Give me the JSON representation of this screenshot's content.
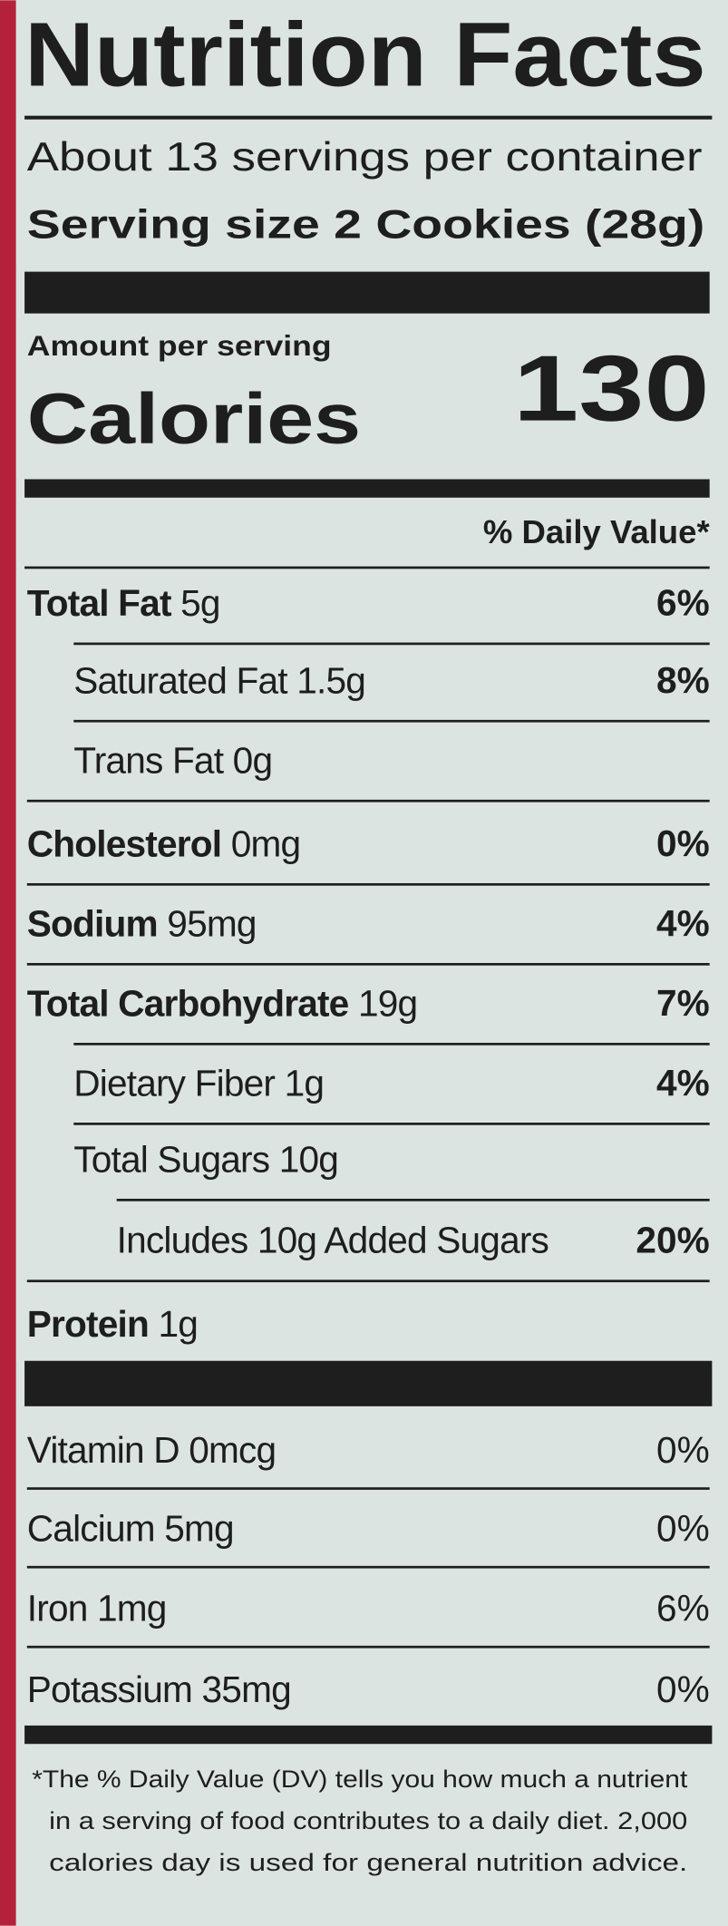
{
  "header": {
    "title": "Nutrition Facts",
    "servings": "About 13 servings per container",
    "serving_size": "Serving size 2 Cookies (28g)"
  },
  "calories": {
    "label": "Amount per serving",
    "name": "Calories",
    "value": "130"
  },
  "daily_value_header": "% Daily Value*",
  "nutrients": [
    {
      "name": "Total Fat",
      "amount": "5g",
      "dv": "6%"
    },
    {
      "name": "Saturated Fat",
      "amount": "1.5g",
      "dv": "8%"
    },
    {
      "name": "Trans Fat",
      "amount": "0g"
    },
    {
      "name": "Cholesterol",
      "amount": "0mg",
      "dv": "0%"
    },
    {
      "name": "Sodium",
      "amount": "95mg",
      "dv": "4%"
    },
    {
      "name": "Total Carbohydrate",
      "amount": "19g",
      "dv": "7%"
    },
    {
      "name": "Dietary Fiber",
      "amount": "1g",
      "dv": "4%"
    },
    {
      "name": "Total Sugars",
      "amount": "10g"
    },
    {
      "name": "Includes 10g Added Sugars",
      "dv": "20%"
    },
    {
      "name": "Protein",
      "amount": "1g"
    }
  ],
  "vitamins": [
    {
      "label": "Vitamin D 0mcg",
      "dv": "0%"
    },
    {
      "label": "Calcium 5mg",
      "dv": "0%"
    },
    {
      "label": "Iron 1mg",
      "dv": "6%"
    },
    {
      "label": "Potassium 35mg",
      "dv": "0%"
    }
  ],
  "footnote": [
    "*The % Daily Value (DV) tells you how much a nutrient",
    "in a serving of food contributes to a daily diet. 2,000",
    "calories day is used for general nutrition advice."
  ]
}
